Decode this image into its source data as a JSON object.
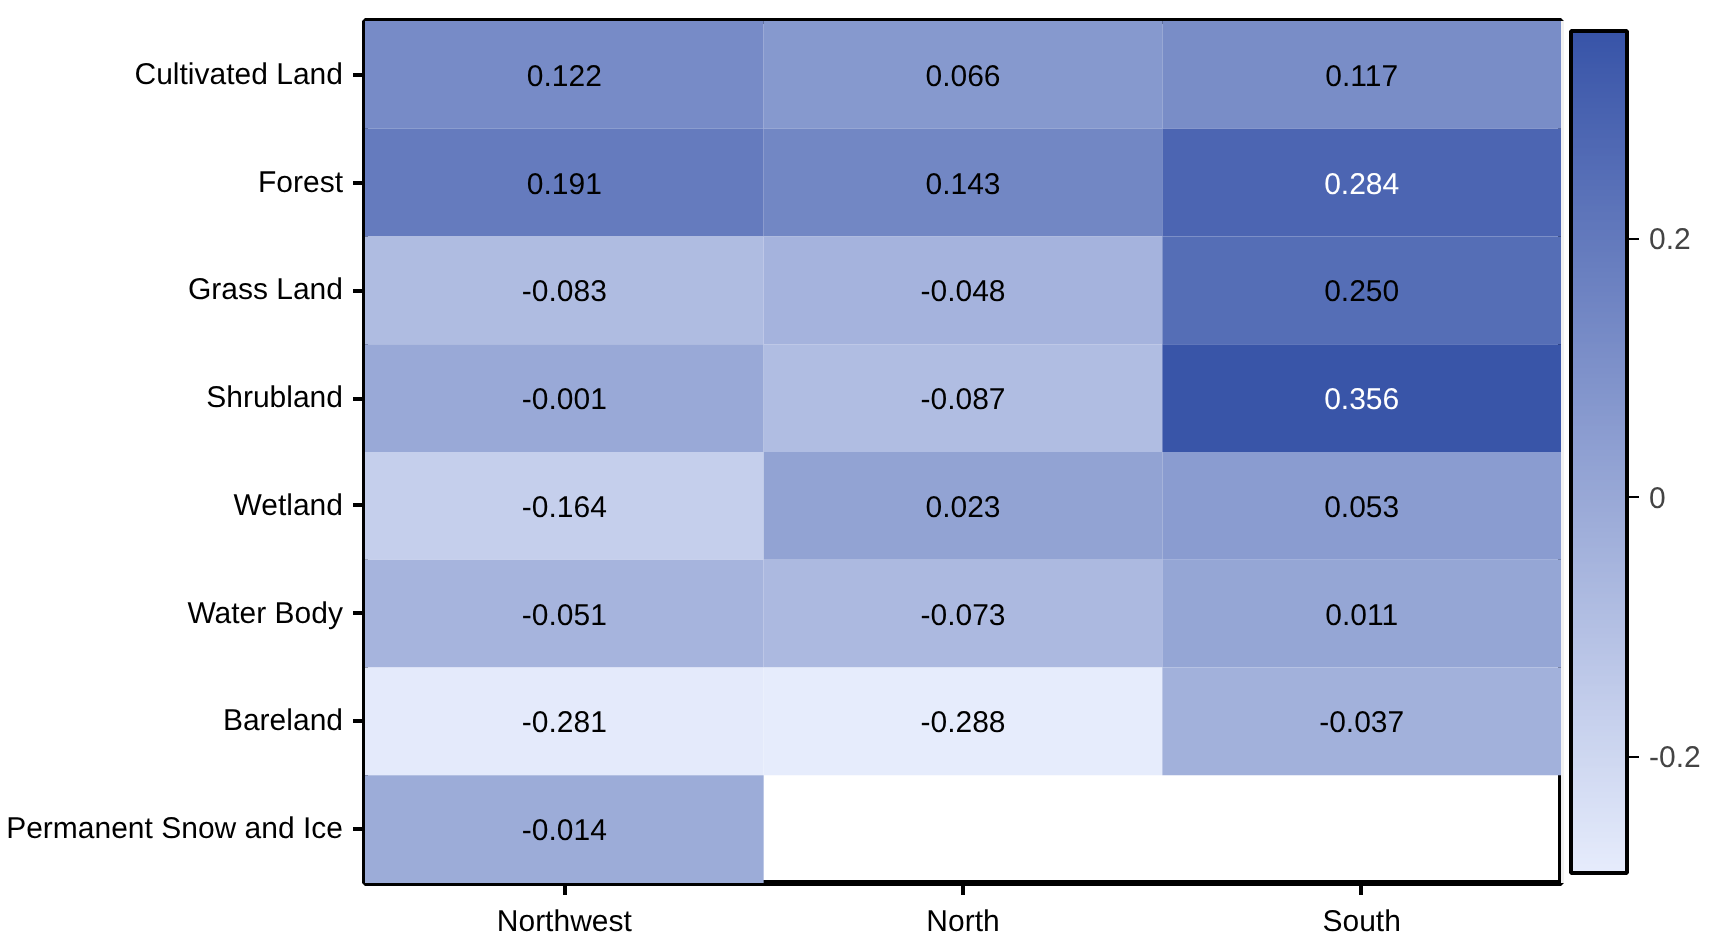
{
  "chart_data": {
    "type": "heatmap",
    "categories": [
      "Northwest",
      "North",
      "South"
    ],
    "y_categories": [
      "Cultivated Land",
      "Forest",
      "Grass Land",
      "Shrubland",
      "Wetland",
      "Water Body",
      "Bareland",
      "Permanent Snow and Ice"
    ],
    "cells": [
      [
        0.122,
        0.066,
        0.117
      ],
      [
        0.191,
        0.143,
        0.284
      ],
      [
        -0.083,
        -0.048,
        0.25
      ],
      [
        -0.001,
        -0.087,
        0.356
      ],
      [
        -0.164,
        0.023,
        0.053
      ],
      [
        -0.051,
        -0.073,
        0.011
      ],
      [
        -0.281,
        -0.288,
        -0.037
      ],
      [
        -0.014,
        null,
        null
      ]
    ],
    "cell_labels": [
      [
        "0.122",
        "0.066",
        "0.117"
      ],
      [
        "0.191",
        "0.143",
        "0.284"
      ],
      [
        "-0.083",
        "-0.048",
        "0.250"
      ],
      [
        "-0.001",
        "-0.087",
        "0.356"
      ],
      [
        "-0.164",
        "0.023",
        "0.053"
      ],
      [
        "-0.051",
        "-0.073",
        "0.011"
      ],
      [
        "-0.281",
        "-0.288",
        "-0.037"
      ],
      [
        "-0.014",
        null,
        null
      ]
    ],
    "clim": [
      -0.29,
      0.36
    ],
    "cticks": [
      {
        "value": -0.2,
        "label": "-0.2"
      },
      {
        "value": 0,
        "label": "0"
      },
      {
        "value": 0.2,
        "label": "0.2"
      }
    ],
    "data_labels": true
  }
}
